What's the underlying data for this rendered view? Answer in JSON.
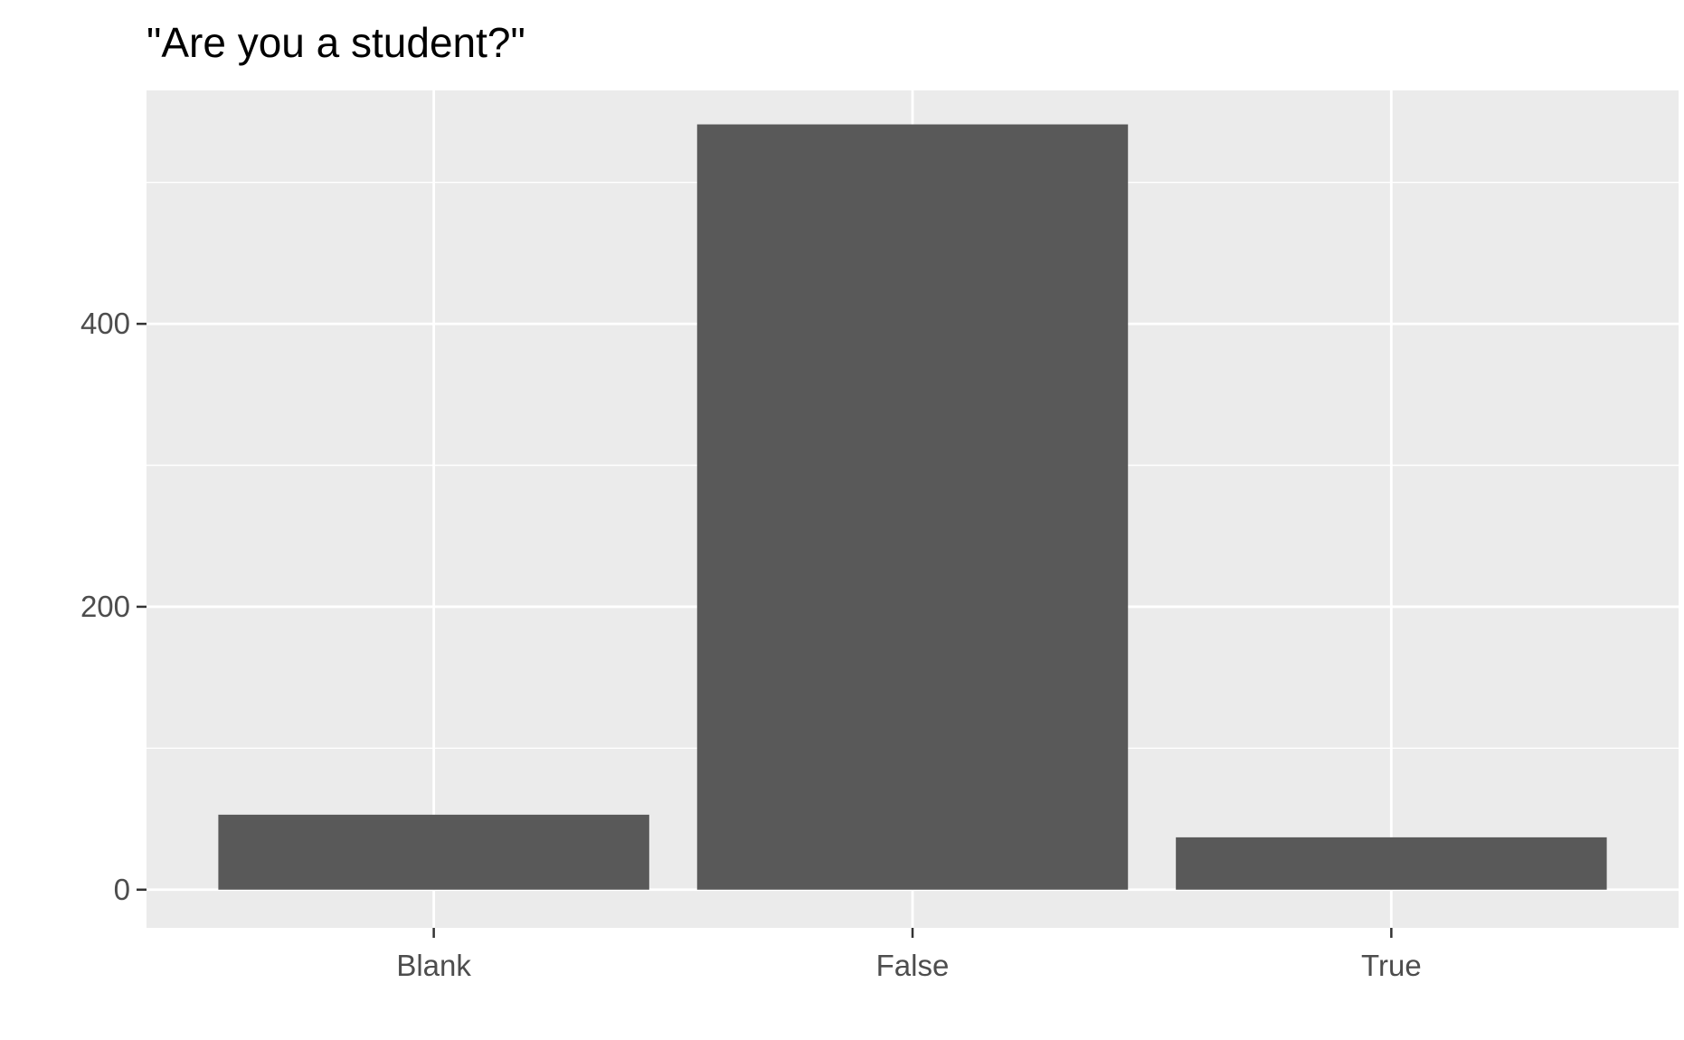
{
  "chart_data": {
    "type": "bar",
    "title": "\"Are you a student?\"",
    "xlabel": "",
    "ylabel": "",
    "categories": [
      "Blank",
      "False",
      "True"
    ],
    "values": [
      53,
      541,
      37
    ],
    "ylim": [
      -27,
      565
    ],
    "yticks": [
      0,
      200,
      400
    ],
    "yticks_minor": [
      100,
      300,
      500
    ],
    "grid": true,
    "colors": {
      "panel": "#EBEBEB",
      "grid": "#FFFFFF",
      "bar": "#595959",
      "axis_text": "#4D4D4D",
      "tick_mark": "#333333"
    }
  }
}
